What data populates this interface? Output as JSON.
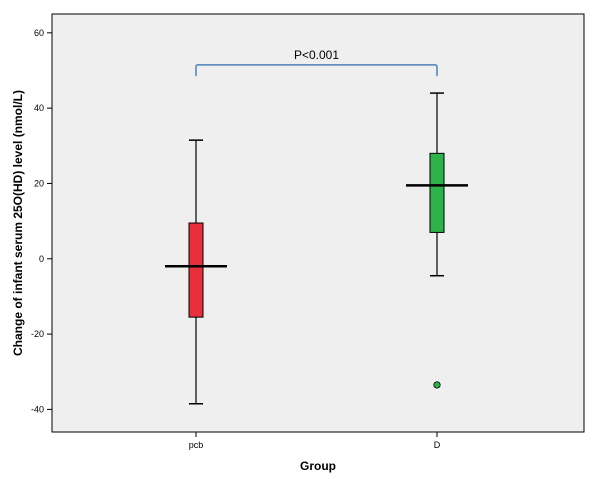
{
  "chart_data": {
    "type": "boxplot",
    "xlabel": "Group",
    "ylabel": "Change of infant serum 25O(HD) level (nmol/L)",
    "ylim": [
      -46,
      65
    ],
    "yticks": [
      -40,
      -20,
      0,
      20,
      40,
      60
    ],
    "grid": false,
    "categories": [
      "pcb",
      "D"
    ],
    "boxes": [
      {
        "category": "pcb",
        "whisker_low": -38.5,
        "q1": -15.5,
        "median": -2,
        "q3": 9.5,
        "whisker_high": 31.5,
        "outliers": [],
        "color": "#e8303a"
      },
      {
        "category": "D",
        "whisker_low": -4.5,
        "q1": 7,
        "median": 19.5,
        "q3": 28,
        "whisker_high": 44,
        "outliers": [
          -33.5
        ],
        "color": "#2eb34a"
      }
    ],
    "annotation": {
      "text": "P<0.001",
      "y": 51.5,
      "drop_to": 48.5,
      "color": "#4f81bd"
    }
  },
  "colors": {
    "plot_background": "#efefef",
    "axis": "#000000"
  }
}
